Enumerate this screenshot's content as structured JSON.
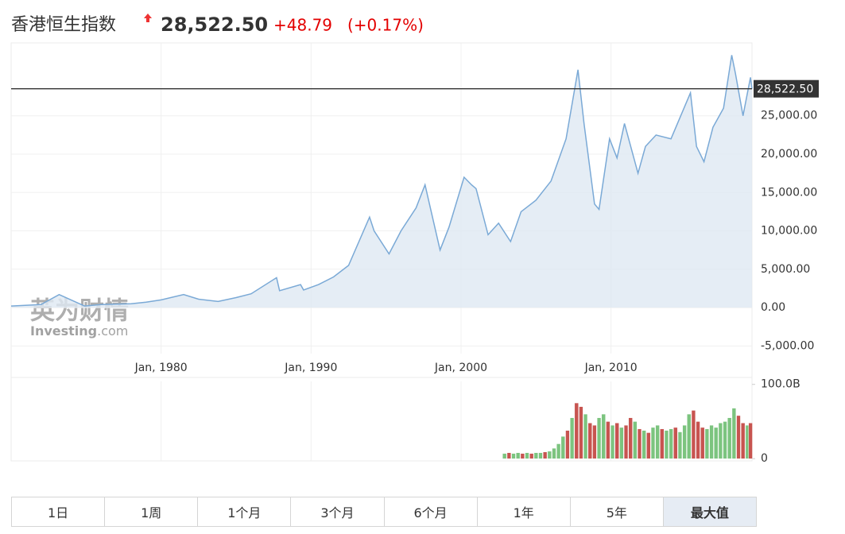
{
  "header": {
    "title": "香港恒生指数",
    "price": "28,522.50",
    "change": "+48.79",
    "change_pct": "(+0.17%)"
  },
  "watermark": {
    "cn": "英为财情",
    "en": "Investing",
    "en_suffix": ".com"
  },
  "chart_data": [
    {
      "type": "area",
      "color": "#7aa9d6",
      "fill_color": "#dfe9f3",
      "grid": true,
      "x": [
        1970.0,
        1972.0,
        1973.2,
        1974.9,
        1976.0,
        1978.0,
        1979.0,
        1980.0,
        1981.5,
        1982.5,
        1983.8,
        1985.0,
        1986.0,
        1987.7,
        1987.9,
        1989.3,
        1989.5,
        1990.5,
        1991.5,
        1992.5,
        1993.9,
        1994.2,
        1995.2,
        1996.0,
        1997.0,
        1997.6,
        1998.6,
        1999.2,
        2000.2,
        2000.7,
        2001.0,
        2001.8,
        2002.5,
        2003.3,
        2004.0,
        2005.0,
        2006.0,
        2007.0,
        2007.8,
        2008.2,
        2008.9,
        2009.2,
        2009.9,
        2010.4,
        2010.9,
        2011.8,
        2012.3,
        2013.0,
        2014.0,
        2015.3,
        2015.7,
        2016.2,
        2016.8,
        2017.5,
        2018.05,
        2018.3,
        2018.8,
        2019.1,
        2019.3,
        2019.4
      ],
      "values": [
        200,
        400,
        1700,
        200,
        400,
        500,
        700,
        1000,
        1700,
        1100,
        800,
        1300,
        1800,
        3900,
        2200,
        3000,
        2300,
        3000,
        4000,
        5500,
        11800,
        10000,
        7000,
        10000,
        13000,
        16000,
        7500,
        10500,
        17000,
        16000,
        15500,
        9500,
        11000,
        8600,
        12500,
        14000,
        16500,
        22000,
        31000,
        24000,
        13500,
        12800,
        22000,
        19500,
        24000,
        17500,
        21000,
        22500,
        22000,
        28000,
        21000,
        19000,
        23500,
        26000,
        32900,
        30500,
        25000,
        28000,
        30000,
        28522.5
      ],
      "xlim": [
        1970,
        2019.4
      ],
      "ylim": [
        -6000,
        34500
      ],
      "xticks": [
        {
          "value": 1980,
          "label": "Jan, 1980"
        },
        {
          "value": 1990,
          "label": "Jan, 1990"
        },
        {
          "value": 2000,
          "label": "Jan, 2000"
        },
        {
          "value": 2010,
          "label": "Jan, 2010"
        }
      ],
      "yticks": [
        {
          "value": -5000,
          "label": "-5,000.00"
        },
        {
          "value": 0,
          "label": "0.00"
        },
        {
          "value": 5000,
          "label": "5,000.00"
        },
        {
          "value": 10000,
          "label": "10,000.00"
        },
        {
          "value": 15000,
          "label": "15,000.00"
        },
        {
          "value": 20000,
          "label": "20,000.00"
        },
        {
          "value": 25000,
          "label": "25,000.00"
        }
      ],
      "last_value": {
        "value": 28522.5,
        "label": "28,522.50"
      },
      "marker_color": "#333333"
    },
    {
      "type": "bar",
      "x": [
        2002.9,
        2003.2,
        2003.5,
        2003.8,
        2004.1,
        2004.4,
        2004.7,
        2005.0,
        2005.3,
        2005.6,
        2005.9,
        2006.2,
        2006.5,
        2006.8,
        2007.1,
        2007.4,
        2007.7,
        2008.0,
        2008.3,
        2008.6,
        2008.9,
        2009.2,
        2009.5,
        2009.8,
        2010.1,
        2010.4,
        2010.7,
        2011.0,
        2011.3,
        2011.6,
        2011.9,
        2012.2,
        2012.5,
        2012.8,
        2013.1,
        2013.4,
        2013.7,
        2014.0,
        2014.3,
        2014.6,
        2014.9,
        2015.2,
        2015.5,
        2015.8,
        2016.1,
        2016.4,
        2016.7,
        2017.0,
        2017.3,
        2017.6,
        2017.9,
        2018.2,
        2018.5,
        2018.8,
        2019.1,
        2019.3
      ],
      "values": [
        7000000000.0,
        8000000000.0,
        7000000000.0,
        8000000000.0,
        7000000000.0,
        8000000000.0,
        7000000000.0,
        8000000000.0,
        8000000000.0,
        9000000000.0,
        10000000000.0,
        14000000000.0,
        20000000000.0,
        30000000000.0,
        38000000000.0,
        55000000000.0,
        75000000000.0,
        70000000000.0,
        60000000000.0,
        48000000000.0,
        45000000000.0,
        55000000000.0,
        60000000000.0,
        50000000000.0,
        45000000000.0,
        48000000000.0,
        42000000000.0,
        45000000000.0,
        55000000000.0,
        50000000000.0,
        40000000000.0,
        38000000000.0,
        35000000000.0,
        42000000000.0,
        45000000000.0,
        40000000000.0,
        38000000000.0,
        40000000000.0,
        42000000000.0,
        36000000000.0,
        45000000000.0,
        60000000000.0,
        65000000000.0,
        50000000000.0,
        42000000000.0,
        40000000000.0,
        45000000000.0,
        42000000000.0,
        48000000000.0,
        50000000000.0,
        55000000000.0,
        68000000000.0,
        58000000000.0,
        48000000000.0,
        45000000000.0,
        48000000000.0
      ],
      "colors": [
        "#7cc47f",
        "#c75450",
        "#7cc47f",
        "#7cc47f",
        "#c75450",
        "#7cc47f",
        "#c75450",
        "#7cc47f",
        "#7cc47f",
        "#c75450",
        "#7cc47f",
        "#7cc47f",
        "#7cc47f",
        "#7cc47f",
        "#c75450",
        "#7cc47f",
        "#c75450",
        "#c75450",
        "#7cc47f",
        "#c75450",
        "#c75450",
        "#7cc47f",
        "#7cc47f",
        "#c75450",
        "#7cc47f",
        "#c75450",
        "#7cc47f",
        "#c75450",
        "#c75450",
        "#7cc47f",
        "#c75450",
        "#7cc47f",
        "#c75450",
        "#7cc47f",
        "#7cc47f",
        "#c75450",
        "#7cc47f",
        "#7cc47f",
        "#c75450",
        "#7cc47f",
        "#7cc47f",
        "#7cc47f",
        "#c75450",
        "#c75450",
        "#c75450",
        "#7cc47f",
        "#7cc47f",
        "#7cc47f",
        "#7cc47f",
        "#7cc47f",
        "#7cc47f",
        "#7cc47f",
        "#c75450",
        "#c75450",
        "#7cc47f",
        "#c75450"
      ],
      "xlim": [
        1970,
        2019.4
      ],
      "ylim": [
        -3000000000.0,
        104000000000.0
      ],
      "yticks": [
        0,
        {
          "value": 100000000000,
          "label": "100.0B"
        }
      ]
    }
  ],
  "range_buttons": {
    "items": [
      "1日",
      "1周",
      "1个月",
      "3个月",
      "6个月",
      "1年",
      "5年",
      "最大值"
    ],
    "active": 7
  }
}
